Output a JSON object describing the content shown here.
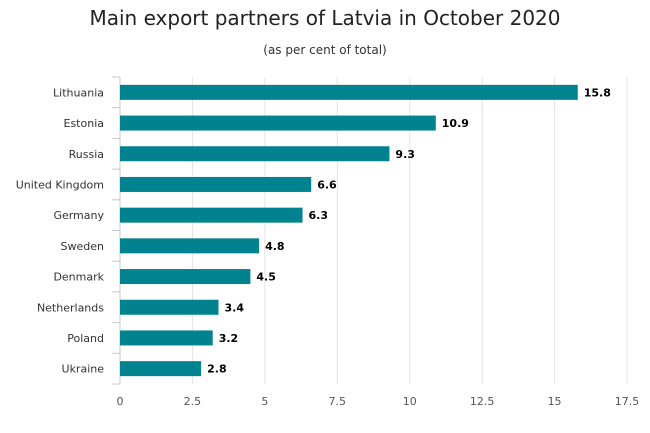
{
  "chart_data": {
    "type": "bar",
    "orientation": "horizontal",
    "title": "Main export partners of Latvia in October 2020",
    "subtitle": "(as per cent of total)",
    "categories": [
      "Lithuania",
      "Estonia",
      "Russia",
      "United Kingdom",
      "Germany",
      "Sweden",
      "Denmark",
      "Netherlands",
      "Poland",
      "Ukraine"
    ],
    "values": [
      15.8,
      10.9,
      9.3,
      6.6,
      6.3,
      4.8,
      4.5,
      3.4,
      3.2,
      2.8
    ],
    "value_labels": [
      "15.8",
      "10.9",
      "9.3",
      "6.6",
      "6.3",
      "4.8",
      "4.5",
      "3.4",
      "3.2",
      "2.8"
    ],
    "xlim": [
      0,
      17.5
    ],
    "x_ticks": [
      0,
      2.5,
      5,
      7.5,
      10,
      12.5,
      15,
      17.5
    ],
    "x_tick_labels": [
      "0",
      "2.5",
      "5",
      "7.5",
      "10",
      "12.5",
      "15",
      "17.5"
    ],
    "grid": true,
    "bar_color": "#00838f"
  }
}
